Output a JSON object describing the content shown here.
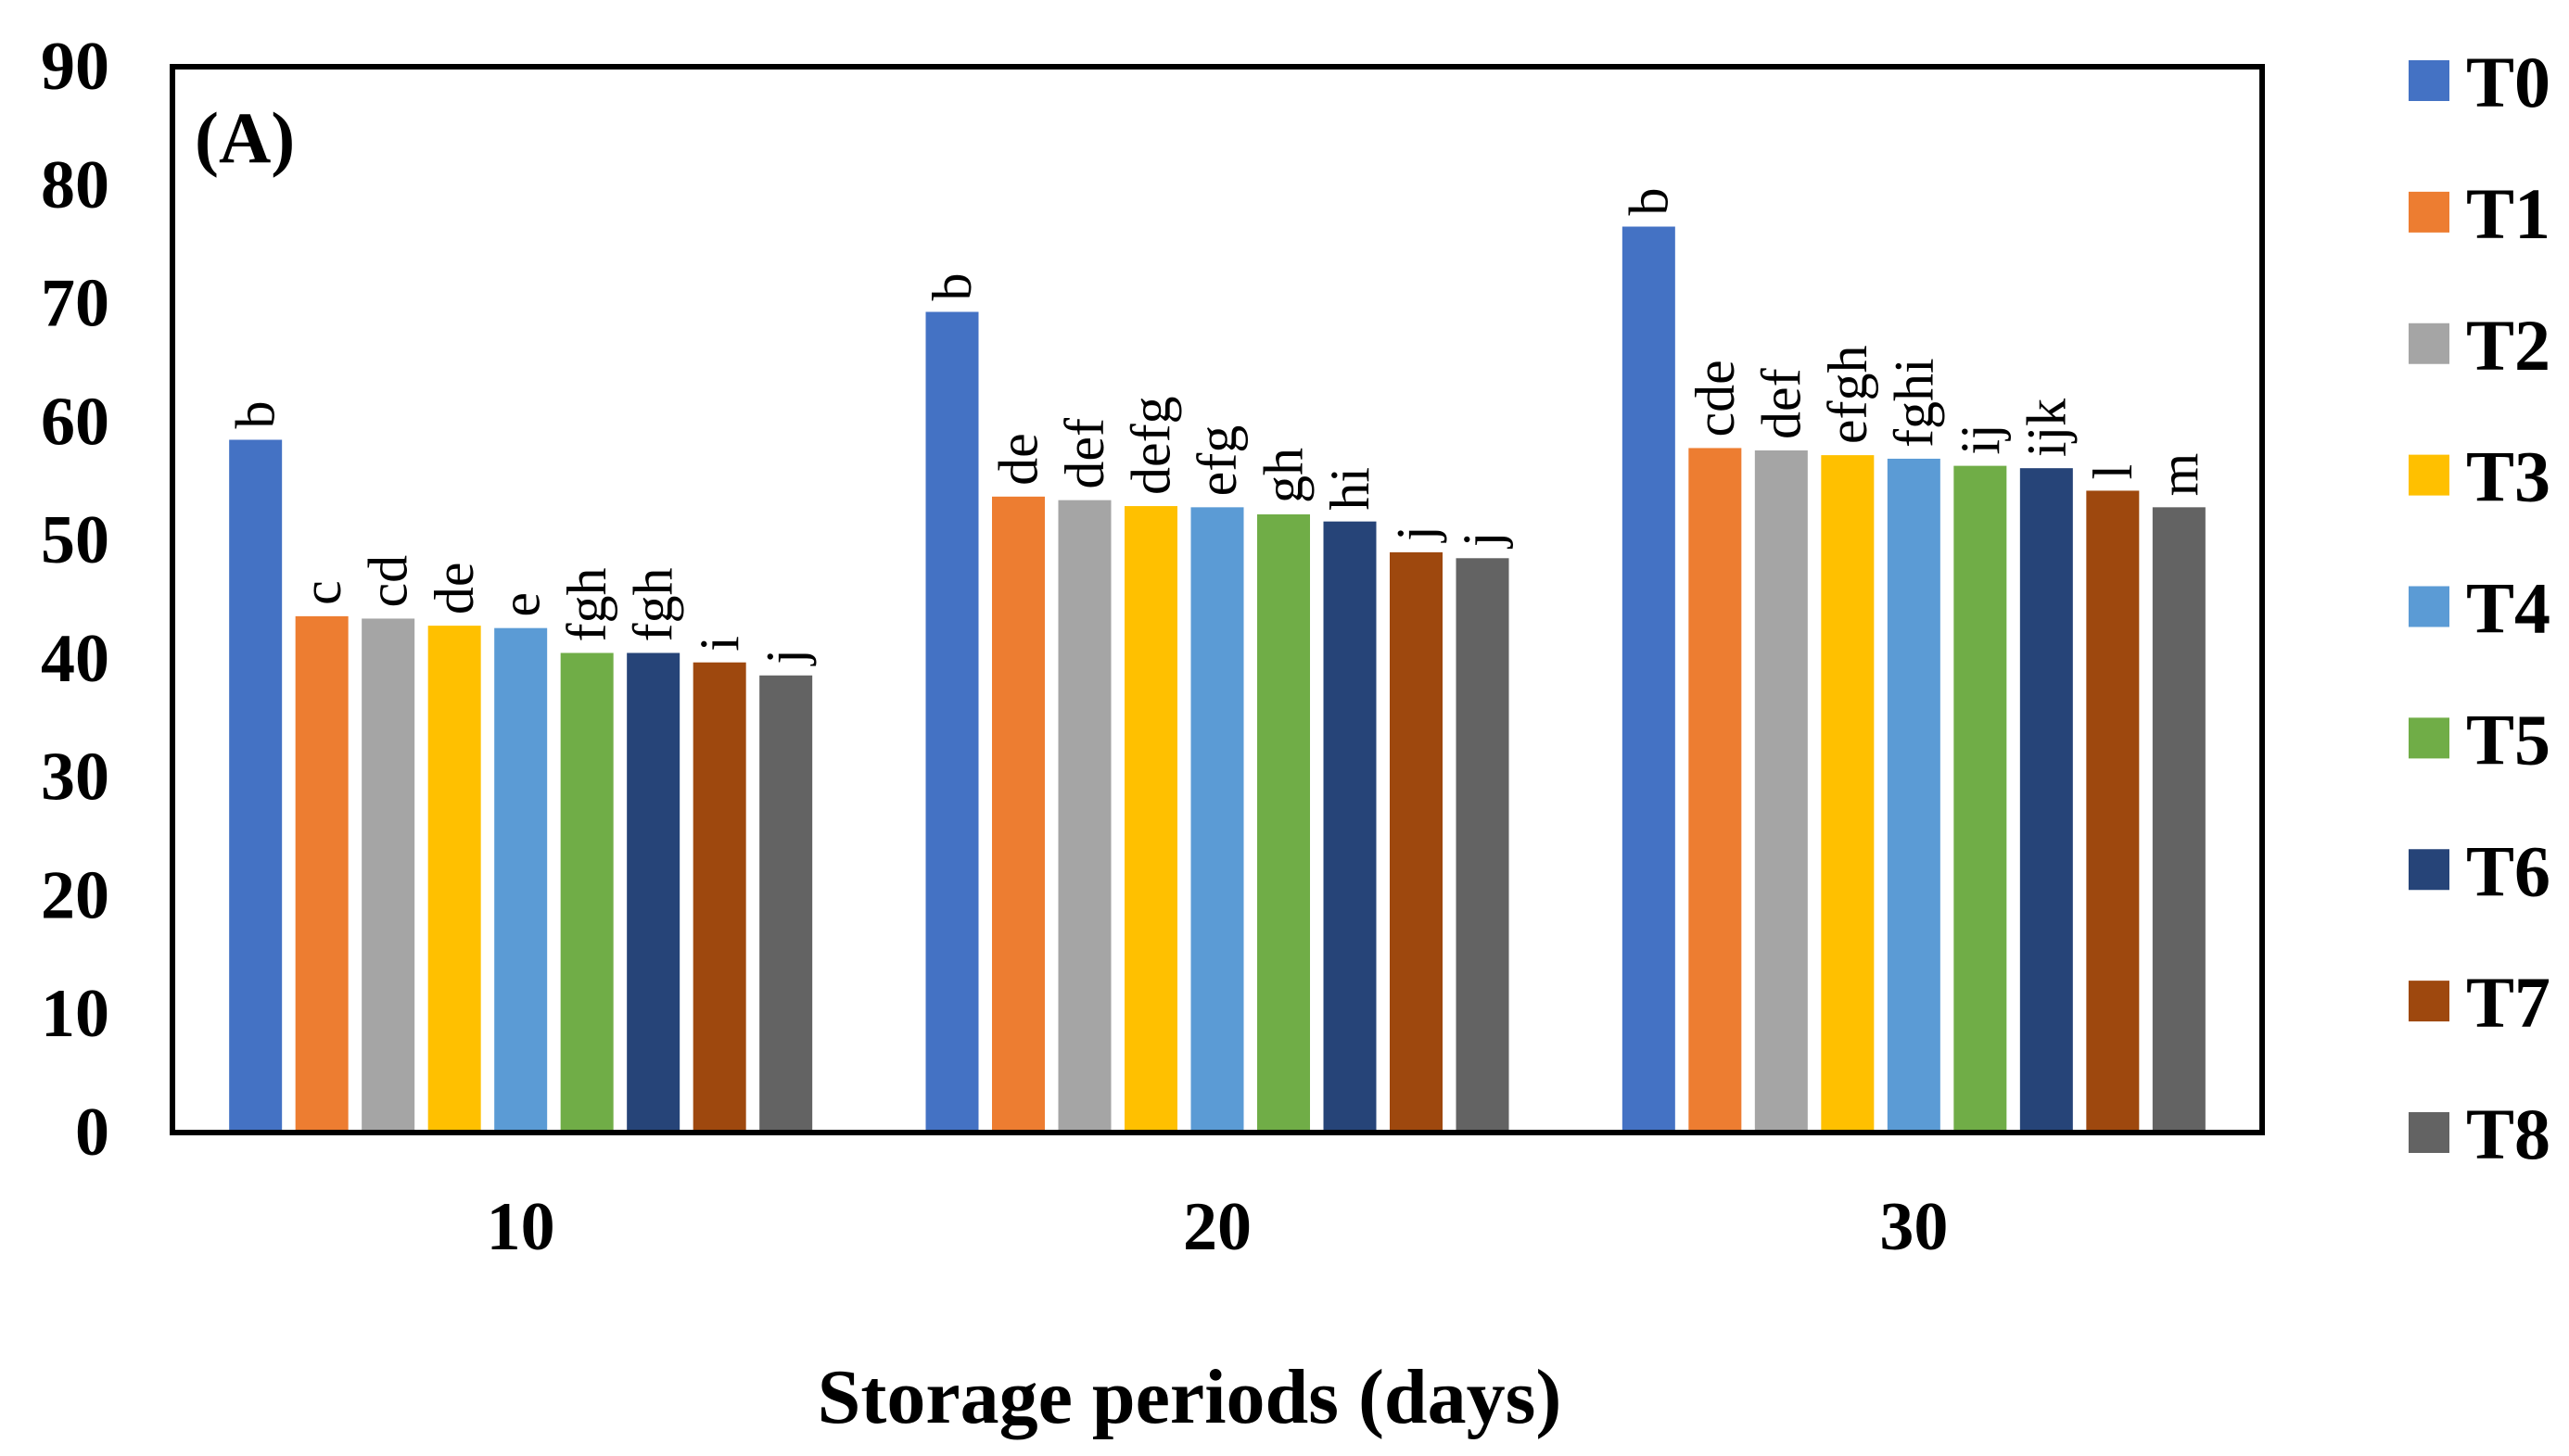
{
  "chart_data": {
    "type": "bar",
    "panel_label": "(A)",
    "xlabel": "Storage periods (days)",
    "ylabel": "",
    "categories": [
      "10",
      "20",
      "30"
    ],
    "ylim": [
      0,
      90
    ],
    "yticks": [
      0,
      10,
      20,
      30,
      40,
      50,
      60,
      70,
      80,
      90
    ],
    "legend_position": "right",
    "grid": false,
    "series": [
      {
        "name": "T0",
        "color": "#4472C4",
        "values": [
          58.5,
          69.3,
          76.5
        ],
        "labels": [
          "b",
          "b",
          "b"
        ]
      },
      {
        "name": "T1",
        "color": "#ED7D31",
        "values": [
          43.6,
          53.7,
          57.8
        ],
        "labels": [
          "c",
          "de",
          "cde"
        ]
      },
      {
        "name": "T2",
        "color": "#A5A5A5",
        "values": [
          43.4,
          53.4,
          57.6
        ],
        "labels": [
          "cd",
          "def",
          "def"
        ]
      },
      {
        "name": "T3",
        "color": "#FFC000",
        "values": [
          42.8,
          52.9,
          57.2
        ],
        "labels": [
          "de",
          "defg",
          "efgh"
        ]
      },
      {
        "name": "T4",
        "color": "#5B9BD5",
        "values": [
          42.6,
          52.8,
          56.9
        ],
        "labels": [
          "e",
          "efg",
          "fghi"
        ]
      },
      {
        "name": "T5",
        "color": "#70AD47",
        "values": [
          40.5,
          52.2,
          56.3
        ],
        "labels": [
          "fgh",
          "gh",
          "ij"
        ]
      },
      {
        "name": "T6",
        "color": "#264478",
        "values": [
          40.5,
          51.6,
          56.1
        ],
        "labels": [
          "fgh",
          "hi",
          "ijk"
        ]
      },
      {
        "name": "T7",
        "color": "#9E480E",
        "values": [
          39.7,
          49.0,
          54.2
        ],
        "labels": [
          "i",
          "j",
          "l"
        ]
      },
      {
        "name": "T8",
        "color": "#636363",
        "values": [
          38.6,
          48.5,
          52.8
        ],
        "labels": [
          "j",
          "j",
          "m"
        ]
      }
    ]
  }
}
